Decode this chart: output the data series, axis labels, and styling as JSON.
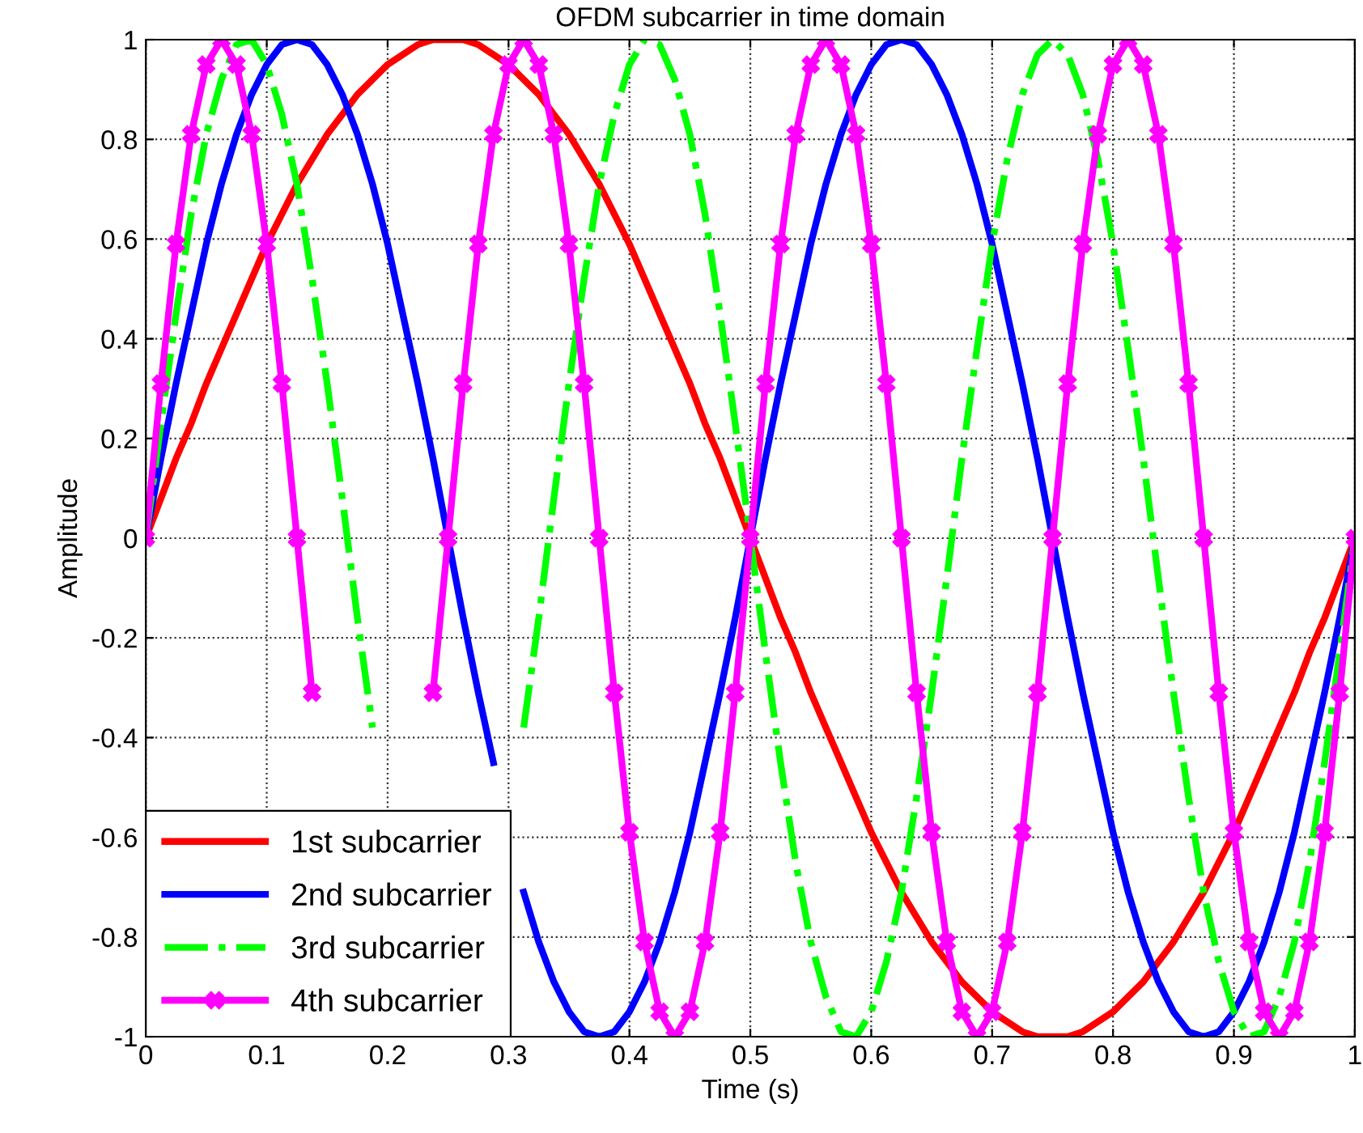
{
  "chart_data": {
    "type": "line",
    "title": "OFDM subcarrier in time domain",
    "xlabel": "Time (s)",
    "ylabel": "Amplitude",
    "x": [
      0,
      0.0125,
      0.025,
      0.0375,
      0.05,
      0.0625,
      0.075,
      0.0875,
      0.1,
      0.1125,
      0.125,
      0.1375,
      0.15,
      0.1625,
      0.175,
      0.1875,
      0.2,
      0.2125,
      0.225,
      0.2375,
      0.25,
      0.2625,
      0.275,
      0.2875,
      0.3,
      0.3125,
      0.325,
      0.3375,
      0.35,
      0.3625,
      0.375,
      0.3875,
      0.4,
      0.4125,
      0.425,
      0.4375,
      0.45,
      0.4625,
      0.475,
      0.4875,
      0.5,
      0.5125,
      0.525,
      0.5375,
      0.55,
      0.5625,
      0.575,
      0.5875,
      0.6,
      0.6125,
      0.625,
      0.6375,
      0.65,
      0.6625,
      0.675,
      0.6875,
      0.7,
      0.7125,
      0.725,
      0.7375,
      0.75,
      0.7625,
      0.775,
      0.7875,
      0.8,
      0.8125,
      0.825,
      0.8375,
      0.85,
      0.8625,
      0.875,
      0.8875,
      0.9,
      0.9125,
      0.925,
      0.9375,
      0.95,
      0.9625,
      0.975,
      0.9875,
      1
    ],
    "series": [
      {
        "name": "1st subcarrier",
        "color": "#ff0000",
        "line_style": "solid",
        "values": [
          0,
          0.08,
          0.16,
          0.23,
          0.31,
          0.38,
          0.45,
          0.52,
          0.59,
          0.65,
          0.71,
          0.76,
          0.81,
          0.85,
          0.89,
          0.92,
          0.95,
          0.97,
          0.99,
          1.0,
          1,
          1.0,
          0.99,
          0.97,
          0.95,
          0.92,
          0.89,
          0.85,
          0.81,
          0.76,
          0.71,
          0.65,
          0.59,
          0.52,
          0.45,
          0.38,
          0.31,
          0.23,
          0.16,
          0.08,
          0,
          -0.08,
          -0.16,
          -0.23,
          -0.31,
          -0.38,
          -0.45,
          -0.52,
          -0.59,
          -0.65,
          -0.71,
          -0.76,
          -0.81,
          -0.85,
          -0.89,
          -0.92,
          -0.95,
          -0.97,
          -0.99,
          -1.0,
          -1,
          -1.0,
          -0.99,
          -0.97,
          -0.95,
          -0.92,
          -0.89,
          -0.85,
          -0.81,
          -0.76,
          -0.71,
          -0.65,
          -0.59,
          -0.52,
          -0.45,
          -0.38,
          -0.31,
          -0.23,
          -0.16,
          -0.08,
          0
        ]
      },
      {
        "name": "2nd subcarrier",
        "color": "#0000ff",
        "line_style": "solid",
        "values": [
          0,
          0.16,
          0.31,
          0.45,
          0.59,
          0.71,
          0.81,
          0.89,
          0.95,
          0.99,
          1,
          0.99,
          0.95,
          0.89,
          0.81,
          0.71,
          0.59,
          0.45,
          0.31,
          0.16,
          0,
          -0.16,
          -0.31,
          -0.45,
          null,
          -0.71,
          -0.81,
          -0.89,
          -0.95,
          -0.99,
          -1,
          -0.99,
          -0.95,
          -0.89,
          -0.81,
          -0.71,
          -0.59,
          -0.45,
          -0.31,
          -0.16,
          0,
          0.16,
          0.31,
          0.45,
          0.59,
          0.71,
          0.81,
          0.89,
          0.95,
          0.99,
          1,
          0.99,
          0.95,
          0.89,
          0.81,
          0.71,
          0.59,
          0.45,
          0.31,
          0.16,
          0,
          -0.16,
          -0.31,
          -0.45,
          -0.59,
          -0.71,
          -0.81,
          -0.89,
          -0.95,
          -0.99,
          -1,
          -0.99,
          -0.95,
          -0.89,
          -0.81,
          -0.71,
          -0.59,
          -0.45,
          -0.31,
          -0.16,
          0
        ]
      },
      {
        "name": "3rd subcarrier",
        "color": "#00ff00",
        "line_style": "dashdot",
        "values": [
          0,
          0.23,
          0.45,
          0.65,
          0.81,
          0.92,
          0.99,
          1.0,
          0.95,
          0.85,
          0.71,
          0.52,
          0.31,
          0.08,
          -0.16,
          -0.38,
          null,
          null,
          null,
          null,
          null,
          null,
          null,
          null,
          null,
          -0.38,
          -0.16,
          0.08,
          0.31,
          0.52,
          0.71,
          0.85,
          0.95,
          1.0,
          0.99,
          0.92,
          0.81,
          0.65,
          0.45,
          0.23,
          0,
          -0.23,
          -0.45,
          -0.65,
          -0.81,
          -0.92,
          -0.99,
          -1.0,
          -0.95,
          -0.85,
          -0.71,
          -0.52,
          -0.31,
          -0.08,
          0.16,
          0.38,
          0.59,
          0.76,
          0.89,
          0.97,
          1,
          0.97,
          0.89,
          0.76,
          0.59,
          0.38,
          0.16,
          -0.08,
          -0.31,
          -0.52,
          -0.71,
          -0.85,
          -0.95,
          -1.0,
          -0.99,
          -0.92,
          -0.81,
          -0.65,
          -0.45,
          -0.23,
          0
        ]
      },
      {
        "name": "4th subcarrier",
        "color": "#ff00ff",
        "line_style": "solid",
        "marker": "cross",
        "values": [
          0,
          0.31,
          0.59,
          0.81,
          0.95,
          1,
          0.95,
          0.81,
          0.59,
          0.31,
          0,
          -0.31,
          null,
          null,
          null,
          null,
          null,
          null,
          null,
          -0.31,
          0,
          0.31,
          0.59,
          0.81,
          0.95,
          1,
          0.95,
          0.81,
          0.59,
          0.31,
          0,
          -0.31,
          -0.59,
          -0.81,
          -0.95,
          -1,
          -0.95,
          -0.81,
          -0.59,
          -0.31,
          0,
          0.31,
          0.59,
          0.81,
          0.95,
          1,
          0.95,
          0.81,
          0.59,
          0.31,
          0,
          -0.31,
          -0.59,
          -0.81,
          -0.95,
          -1,
          -0.95,
          -0.81,
          -0.59,
          -0.31,
          0,
          0.31,
          0.59,
          0.81,
          0.95,
          1,
          0.95,
          0.81,
          0.59,
          0.31,
          0,
          -0.31,
          -0.59,
          -0.81,
          -0.95,
          -1,
          -0.95,
          -0.81,
          -0.59,
          -0.31,
          0
        ]
      }
    ],
    "xlim": [
      0,
      1
    ],
    "ylim": [
      -1,
      1
    ],
    "xticks": [
      0,
      0.1,
      0.2,
      0.3,
      0.4,
      0.5,
      0.6,
      0.7,
      0.8,
      0.9,
      1
    ],
    "yticks": [
      -1,
      -0.8,
      -0.6,
      -0.4,
      -0.2,
      0,
      0.2,
      0.4,
      0.6,
      0.8,
      1
    ],
    "grid": true,
    "legend": "bottom left"
  }
}
